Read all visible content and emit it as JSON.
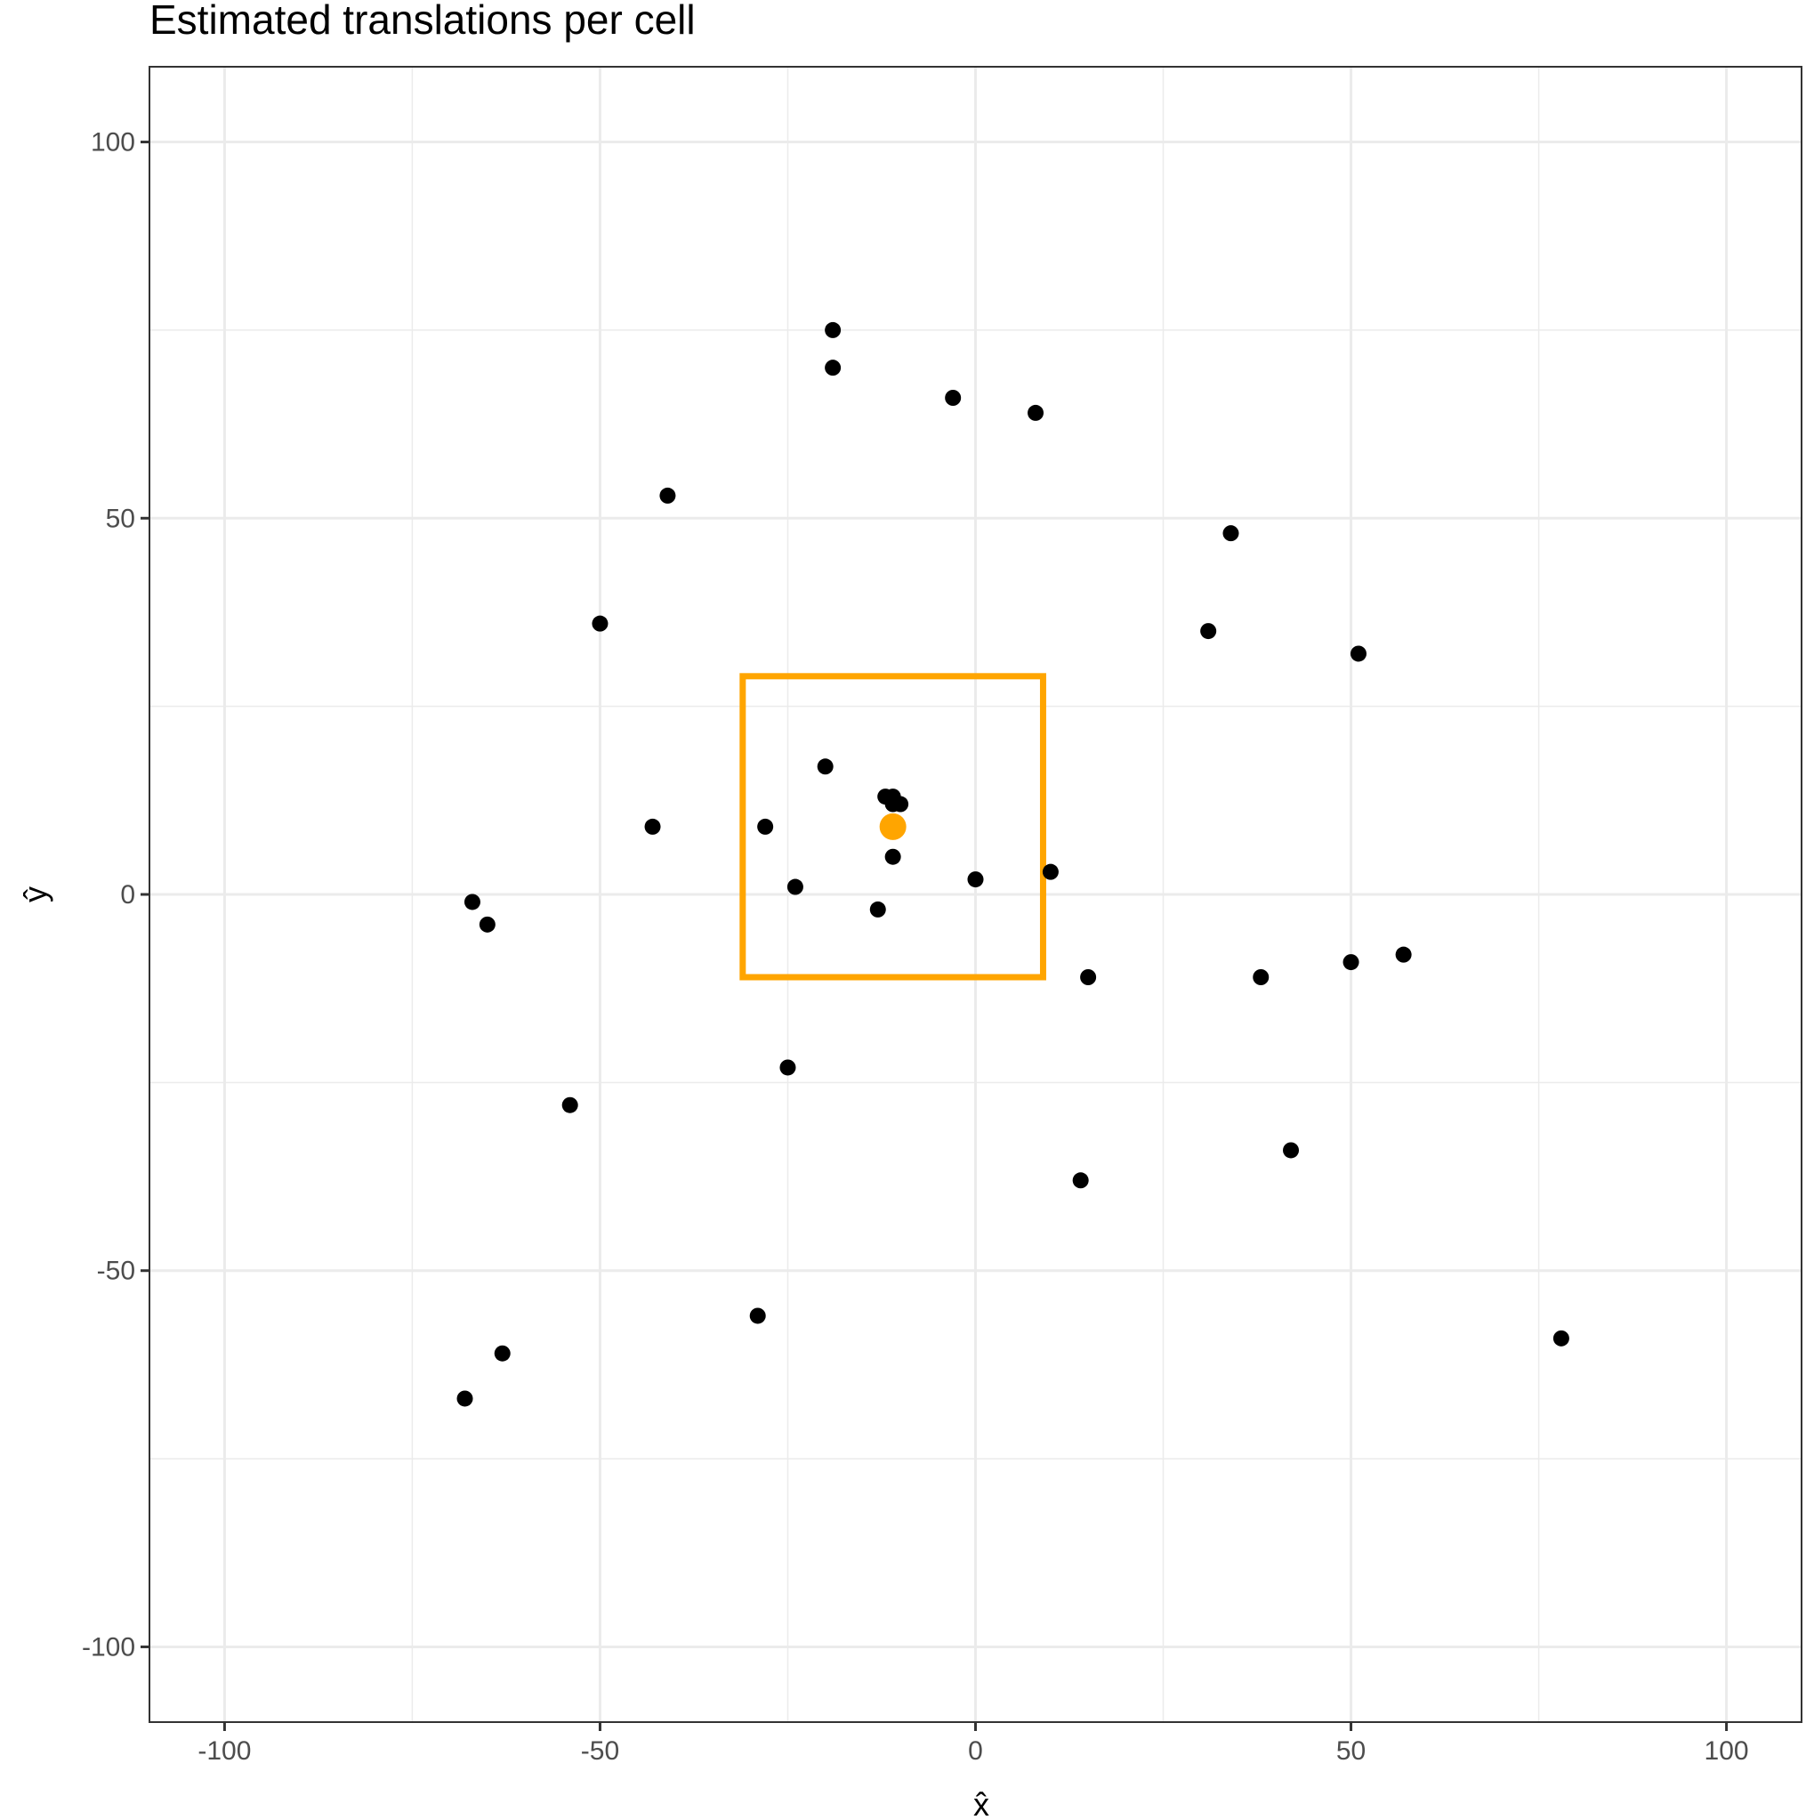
{
  "chart_data": {
    "type": "scatter",
    "title": "Estimated translations per cell",
    "xlabel": "x̂",
    "ylabel": "ŷ",
    "xlim": [
      -110,
      110
    ],
    "ylim": [
      -110,
      110
    ],
    "x_ticks": [
      -100,
      -50,
      0,
      50,
      100
    ],
    "x_tick_labels": [
      "-100",
      "-50",
      "0",
      "50",
      "100"
    ],
    "y_ticks": [
      -100,
      -50,
      0,
      50,
      100
    ],
    "y_tick_labels": [
      "-100",
      "-50",
      "0",
      "50",
      "100"
    ],
    "grid": true,
    "series": [
      {
        "color": "#000000",
        "points": [
          {
            "x": -19,
            "y": 75
          },
          {
            "x": -19,
            "y": 70
          },
          {
            "x": -3,
            "y": 66
          },
          {
            "x": 8,
            "y": 64
          },
          {
            "x": -41,
            "y": 53
          },
          {
            "x": 34,
            "y": 48
          },
          {
            "x": -50,
            "y": 36
          },
          {
            "x": 31,
            "y": 35
          },
          {
            "x": 51,
            "y": 32
          },
          {
            "x": -20,
            "y": 17
          },
          {
            "x": -12,
            "y": 13
          },
          {
            "x": -11,
            "y": 13
          },
          {
            "x": -11,
            "y": 12
          },
          {
            "x": -10,
            "y": 12
          },
          {
            "x": -43,
            "y": 9
          },
          {
            "x": -28,
            "y": 9
          },
          {
            "x": -11,
            "y": 5
          },
          {
            "x": 10,
            "y": 3
          },
          {
            "x": 0,
            "y": 2
          },
          {
            "x": -24,
            "y": 1
          },
          {
            "x": -67,
            "y": -1
          },
          {
            "x": -13,
            "y": -2
          },
          {
            "x": -65,
            "y": -4
          },
          {
            "x": 57,
            "y": -8
          },
          {
            "x": 50,
            "y": -9
          },
          {
            "x": 15,
            "y": -11
          },
          {
            "x": 38,
            "y": -11
          },
          {
            "x": -25,
            "y": -23
          },
          {
            "x": -54,
            "y": -28
          },
          {
            "x": 42,
            "y": -34
          },
          {
            "x": 14,
            "y": -38
          },
          {
            "x": -29,
            "y": -56
          },
          {
            "x": -63,
            "y": -61
          },
          {
            "x": 78,
            "y": -59
          },
          {
            "x": -68,
            "y": -67
          }
        ]
      }
    ],
    "highlight_point": {
      "x": -11,
      "y": 9,
      "color": "#FFA500"
    },
    "highlight_box": {
      "xmin": -31,
      "xmax": 9,
      "ymin": -11,
      "ymax": 29,
      "color": "#FFA500"
    }
  }
}
